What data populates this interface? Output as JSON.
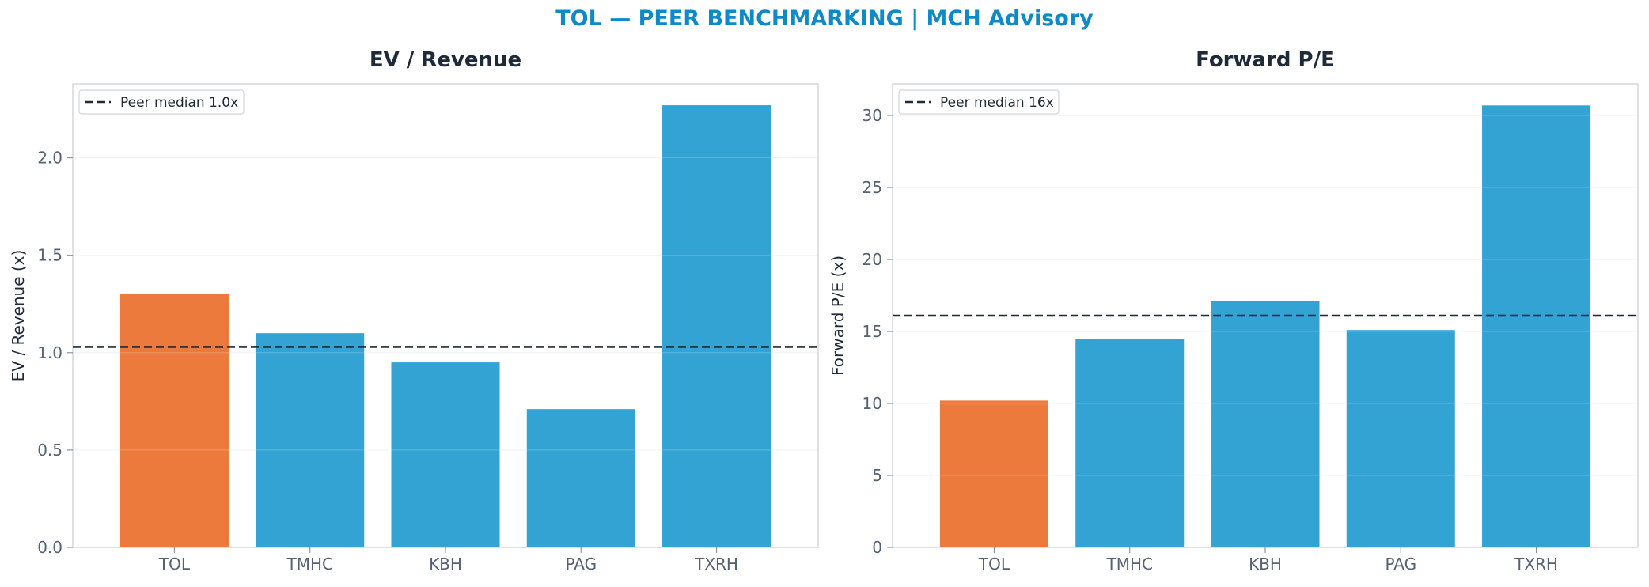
{
  "figure_title": "TOL — PEER BENCHMARKING | MCH Advisory",
  "colors": {
    "highlight": "#ec7a3c",
    "peer": "#33a3d4",
    "median_line": "#1e2a38",
    "title": "#0f8ac7"
  },
  "chart_data": [
    {
      "type": "bar",
      "title": "EV / Revenue",
      "ylabel": "EV / Revenue (x)",
      "xlabel": "",
      "categories": [
        "TOL",
        "TMHC",
        "KBH",
        "PAG",
        "TXRH"
      ],
      "values": [
        1.3,
        1.1,
        0.95,
        0.71,
        2.27
      ],
      "highlight_index": 0,
      "ylim": [
        0,
        2.38
      ],
      "yticks": [
        0.0,
        0.5,
        1.0,
        1.5,
        2.0
      ],
      "ytick_labels": [
        "0.0",
        "0.5",
        "1.0",
        "1.5",
        "2.0"
      ],
      "median": 1.03,
      "legend": "Peer median 1.0x",
      "legend_position": "top-left",
      "grid": true
    },
    {
      "type": "bar",
      "title": "Forward P/E",
      "ylabel": "Forward P/E (x)",
      "xlabel": "",
      "categories": [
        "TOL",
        "TMHC",
        "KBH",
        "PAG",
        "TXRH"
      ],
      "values": [
        10.2,
        14.5,
        17.1,
        15.1,
        30.7
      ],
      "highlight_index": 0,
      "ylim": [
        0,
        32.2
      ],
      "yticks": [
        0,
        5,
        10,
        15,
        20,
        25,
        30
      ],
      "ytick_labels": [
        "0",
        "5",
        "10",
        "15",
        "20",
        "25",
        "30"
      ],
      "median": 16.1,
      "legend": "Peer median 16x",
      "legend_position": "top-left",
      "grid": true
    }
  ]
}
